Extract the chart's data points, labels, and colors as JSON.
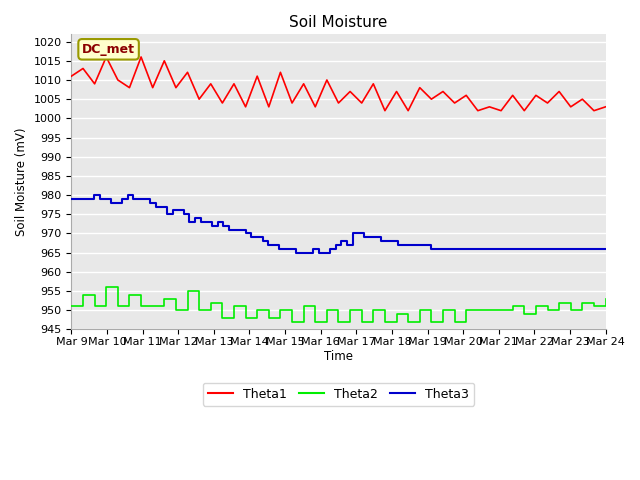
{
  "title": "Soil Moisture",
  "ylabel": "Soil Moisture (mV)",
  "xlabel": "Time",
  "ylim": [
    945,
    1022
  ],
  "yticks": [
    945,
    950,
    955,
    960,
    965,
    970,
    975,
    980,
    985,
    990,
    995,
    1000,
    1005,
    1010,
    1015,
    1020
  ],
  "x_tick_labels": [
    "Mar 9",
    "Mar 10",
    "Mar 11",
    "Mar 12",
    "Mar 13",
    "Mar 14",
    "Mar 15",
    "Mar 16",
    "Mar 17",
    "Mar 18",
    "Mar 19",
    "Mar 20",
    "Mar 21",
    "Mar 22",
    "Mar 23",
    "Mar 24"
  ],
  "annotation_text": "DC_met",
  "annotation_bg": "#ffffcc",
  "annotation_border": "#999900",
  "annotation_text_color": "#8b0000",
  "fig_bg": "#ffffff",
  "plot_bg": "#e8e8e8",
  "grid_color": "#ffffff",
  "theta1_color": "#ff0000",
  "theta2_color": "#00ee00",
  "theta3_color": "#0000cc",
  "theta1": [
    1011,
    1013,
    1009,
    1016,
    1010,
    1008,
    1016,
    1008,
    1015,
    1008,
    1012,
    1005,
    1009,
    1004,
    1009,
    1003,
    1011,
    1003,
    1012,
    1004,
    1009,
    1003,
    1010,
    1004,
    1007,
    1004,
    1009,
    1002,
    1007,
    1002,
    1008,
    1005,
    1007,
    1004,
    1006,
    1002,
    1003,
    1002,
    1006,
    1002,
    1006,
    1004,
    1007,
    1003,
    1005,
    1002,
    1003
  ],
  "theta2": [
    951,
    954,
    951,
    956,
    951,
    954,
    951,
    951,
    953,
    950,
    955,
    950,
    952,
    948,
    951,
    948,
    950,
    948,
    950,
    947,
    951,
    947,
    950,
    947,
    950,
    947,
    950,
    947,
    949,
    947,
    950,
    947,
    950,
    947,
    950,
    950,
    950,
    950,
    951,
    949,
    951,
    950,
    952,
    950,
    952,
    951,
    953
  ],
  "theta3": [
    979,
    979,
    979,
    979,
    980,
    979,
    979,
    978,
    978,
    979,
    980,
    979,
    979,
    979,
    978,
    977,
    977,
    975,
    976,
    976,
    975,
    973,
    974,
    973,
    973,
    972,
    973,
    972,
    971,
    971,
    971,
    970,
    969,
    969,
    968,
    967,
    967,
    966,
    966,
    966,
    965,
    965,
    965,
    966,
    965,
    965,
    966,
    967,
    968,
    967,
    970,
    970,
    969,
    969,
    969,
    968,
    968,
    968,
    967,
    967,
    967,
    967,
    967,
    967,
    966,
    966,
    966,
    966,
    966,
    966,
    966,
    966,
    966,
    966,
    966,
    966,
    966,
    966,
    966,
    966,
    966,
    966,
    966,
    966,
    966,
    966,
    966,
    966,
    966,
    966,
    966,
    966,
    966,
    966,
    966,
    966
  ]
}
